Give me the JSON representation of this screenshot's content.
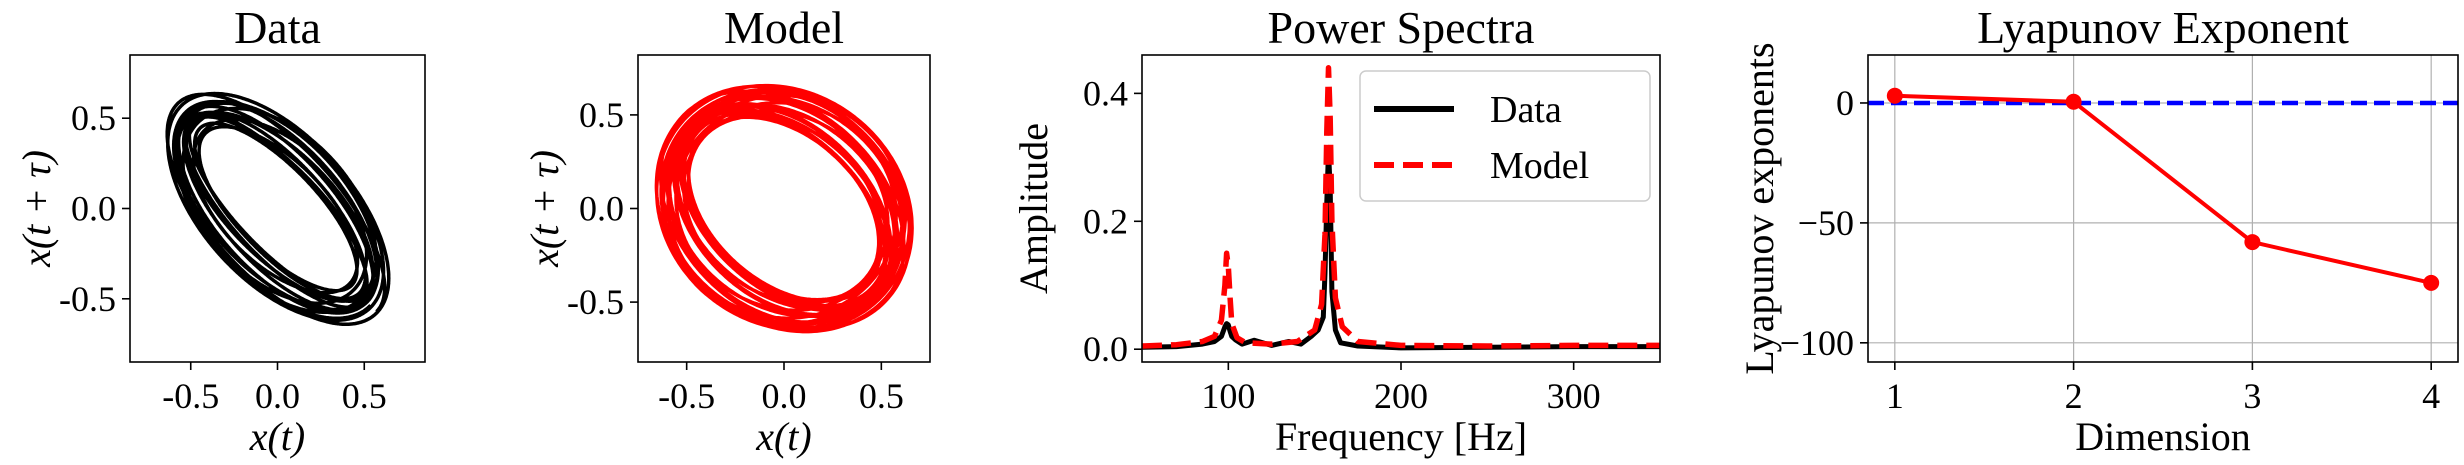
{
  "chart_data": [
    {
      "type": "line",
      "title": "Data",
      "xlabel": "x(t)",
      "ylabel": "x(t + τ)",
      "xlim": [
        -0.85,
        0.85
      ],
      "ylim": [
        -0.85,
        0.85
      ],
      "xticks": [
        -0.5,
        0.0,
        0.5
      ],
      "xticklabels": [
        "-0.5",
        "0.0",
        "0.5"
      ],
      "yticks": [
        -0.5,
        0.0,
        0.5
      ],
      "yticklabels": [
        "-0.5",
        "0.0",
        "0.5"
      ],
      "grid": false,
      "series": [
        {
          "color": "#000000",
          "attractor": {
            "radius_range": [
              0.35,
              0.82
            ],
            "inner_radius_range": [
              0.12,
              0.22
            ],
            "tilt_deg": -45,
            "loops": 14
          }
        }
      ]
    },
    {
      "type": "line",
      "title": "Model",
      "xlabel": "x(t)",
      "ylabel": "x(t + τ)",
      "xlim": [
        -0.75,
        0.75
      ],
      "ylim": [
        -0.82,
        0.82
      ],
      "xticks": [
        -0.5,
        0.0,
        0.5
      ],
      "xticklabels": [
        "-0.5",
        "0.0",
        "0.5"
      ],
      "yticks": [
        -0.5,
        0.0,
        0.5
      ],
      "yticklabels": [
        "-0.5",
        "0.0",
        "0.5"
      ],
      "grid": false,
      "series": [
        {
          "color": "#ff0000",
          "attractor": {
            "radius_range": [
              0.4,
              0.72
            ],
            "inner_radius_range": [
              0.2,
              0.32
            ],
            "tilt_deg": -45,
            "loops": 22
          }
        }
      ]
    },
    {
      "type": "line",
      "title": "Power Spectra",
      "xlabel": "Frequency [Hz]",
      "ylabel": "Amplitude",
      "xlim": [
        50,
        350
      ],
      "ylim": [
        -0.02,
        0.46
      ],
      "xticks": [
        100,
        200,
        300
      ],
      "xticklabels": [
        "100",
        "200",
        "300"
      ],
      "yticks": [
        0.0,
        0.2,
        0.4
      ],
      "yticklabels": [
        "0.0",
        "0.2",
        "0.4"
      ],
      "grid": false,
      "legend_position": "upper right",
      "series": [
        {
          "name": "Data",
          "color": "#000000",
          "style": "solid",
          "x": [
            50,
            70,
            85,
            92,
            96,
            98,
            99,
            100,
            101,
            102,
            104,
            108,
            115,
            125,
            135,
            142,
            148,
            152,
            155,
            156,
            157,
            158,
            159,
            160,
            162,
            165,
            175,
            200,
            250,
            300,
            350
          ],
          "y": [
            0.003,
            0.004,
            0.008,
            0.012,
            0.02,
            0.035,
            0.04,
            0.038,
            0.028,
            0.02,
            0.015,
            0.008,
            0.014,
            0.006,
            0.012,
            0.008,
            0.02,
            0.03,
            0.05,
            0.12,
            0.23,
            0.31,
            0.25,
            0.09,
            0.03,
            0.01,
            0.005,
            0.002,
            0.003,
            0.004,
            0.004
          ]
        },
        {
          "name": "Model",
          "color": "#ff0000",
          "style": "dashed",
          "x": [
            50,
            70,
            85,
            92,
            96,
            98,
            99,
            100,
            101,
            102,
            105,
            110,
            125,
            140,
            150,
            154,
            156,
            157,
            158,
            159,
            160,
            162,
            166,
            175,
            200,
            250,
            300,
            350
          ],
          "y": [
            0.005,
            0.007,
            0.012,
            0.02,
            0.045,
            0.1,
            0.15,
            0.13,
            0.08,
            0.04,
            0.018,
            0.01,
            0.008,
            0.012,
            0.03,
            0.07,
            0.18,
            0.34,
            0.44,
            0.36,
            0.2,
            0.08,
            0.035,
            0.012,
            0.006,
            0.005,
            0.006,
            0.006
          ]
        }
      ]
    },
    {
      "type": "line",
      "title": "Lyapunov Exponent",
      "xlabel": "Dimension",
      "ylabel": "Lyapunov exponents",
      "xlim": [
        0.85,
        4.15
      ],
      "ylim": [
        -108,
        20
      ],
      "xticks": [
        1,
        2,
        3,
        4
      ],
      "xticklabels": [
        "1",
        "2",
        "3",
        "4"
      ],
      "yticks": [
        0,
        -50,
        -100
      ],
      "yticklabels": [
        "0",
        "−50",
        "−100"
      ],
      "grid": true,
      "reference_line": {
        "y": 0,
        "color": "#0000ff",
        "style": "dashed"
      },
      "series": [
        {
          "color": "#ff0000",
          "style": "solid",
          "marker": "circle",
          "x": [
            1,
            2,
            3,
            4
          ],
          "y": [
            3,
            0.5,
            -58,
            -75
          ]
        }
      ]
    }
  ]
}
